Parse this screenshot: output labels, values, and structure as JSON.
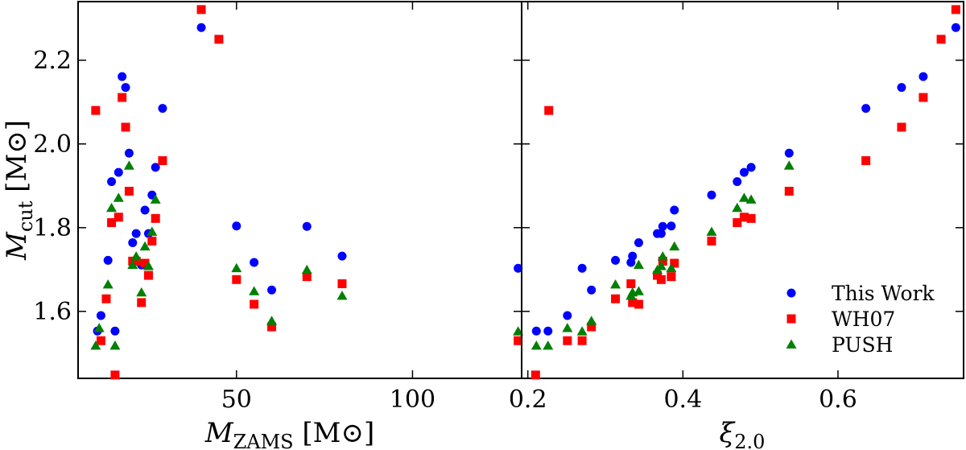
{
  "chart_data": [
    {
      "type": "scatter",
      "xlabel": "MZAMS [M⊙]",
      "ylabel": "Mcut [M⊙]",
      "xlim": [
        5,
        131
      ],
      "ylim": [
        1.44,
        2.34
      ],
      "xticks": [
        50,
        100
      ],
      "yticks": [
        1.6,
        1.8,
        2.0,
        2.2
      ],
      "xtick_labels": [
        "50",
        "100"
      ],
      "ytick_labels": [
        "1.6",
        "1.8",
        "2.0",
        "2.2"
      ],
      "series": [
        {
          "name": "This Work",
          "color": "#0000ff",
          "marker": "circle",
          "points": [
            [
              10.5,
              1.553
            ],
            [
              11.5,
              1.59
            ],
            [
              13.5,
              1.722
            ],
            [
              14.5,
              1.91
            ],
            [
              15.5,
              1.553
            ],
            [
              16.5,
              1.932
            ],
            [
              17.5,
              2.161
            ],
            [
              18.5,
              2.135
            ],
            [
              19.5,
              1.978
            ],
            [
              20.5,
              1.764
            ],
            [
              21.5,
              1.786
            ],
            [
              23.0,
              1.711
            ],
            [
              24.0,
              1.842
            ],
            [
              25.0,
              1.786
            ],
            [
              26.0,
              1.878
            ],
            [
              27.0,
              1.944
            ],
            [
              29.0,
              2.085
            ],
            [
              40.0,
              2.278
            ],
            [
              50.0,
              1.804
            ],
            [
              55.0,
              1.717
            ],
            [
              60.0,
              1.651
            ],
            [
              70.0,
              1.803
            ],
            [
              80.0,
              1.732
            ],
            [
              130.0,
              1.703
            ]
          ]
        },
        {
          "name": "WH07",
          "color": "#ff0000",
          "marker": "square",
          "points": [
            [
              10.0,
              2.08
            ],
            [
              11.5,
              1.53
            ],
            [
              13.0,
              1.63
            ],
            [
              14.5,
              1.812
            ],
            [
              15.5,
              1.448
            ],
            [
              16.5,
              1.825
            ],
            [
              17.5,
              2.111
            ],
            [
              18.5,
              2.04
            ],
            [
              19.5,
              1.887
            ],
            [
              20.5,
              1.72
            ],
            [
              21.5,
              1.72
            ],
            [
              23.0,
              1.621
            ],
            [
              24.0,
              1.715
            ],
            [
              25.0,
              1.686
            ],
            [
              26.0,
              1.768
            ],
            [
              27.0,
              1.822
            ],
            [
              29.0,
              1.96
            ],
            [
              40.0,
              2.321
            ],
            [
              45.0,
              2.25
            ],
            [
              50.0,
              1.676
            ],
            [
              55.0,
              1.617
            ],
            [
              60.0,
              1.563
            ],
            [
              70.0,
              1.683
            ],
            [
              80.0,
              1.666
            ],
            [
              130.0,
              1.53
            ]
          ]
        },
        {
          "name": "PUSH",
          "color": "#008000",
          "marker": "triangle",
          "points": [
            [
              10.0,
              1.518
            ],
            [
              11.0,
              1.56
            ],
            [
              13.5,
              1.664
            ],
            [
              14.5,
              1.847
            ],
            [
              15.5,
              1.518
            ],
            [
              16.5,
              1.871
            ],
            [
              19.5,
              1.948
            ],
            [
              20.5,
              1.711
            ],
            [
              21.5,
              1.731
            ],
            [
              23.0,
              1.645
            ],
            [
              24.0,
              1.755
            ],
            [
              25.0,
              1.708
            ],
            [
              26.0,
              1.79
            ],
            [
              27.0,
              1.867
            ],
            [
              50.0,
              1.703
            ],
            [
              55.0,
              1.648
            ],
            [
              60.0,
              1.577
            ],
            [
              70.0,
              1.699
            ],
            [
              80.0,
              1.637
            ],
            [
              130.0,
              1.552
            ]
          ]
        }
      ]
    },
    {
      "type": "scatter",
      "xlabel": "ξ2.0",
      "ylabel": "",
      "xlim": [
        0.192,
        0.762
      ],
      "ylim": [
        1.44,
        2.34
      ],
      "xticks": [
        0.2,
        0.4,
        0.6
      ],
      "yticks": [
        1.6,
        1.8,
        2.0,
        2.2
      ],
      "xtick_labels": [
        "0.2",
        "0.4",
        "0.6"
      ],
      "ytick_labels": [],
      "legend_position": "bottom-right",
      "series": [
        {
          "name": "This Work",
          "color": "#0000ff",
          "marker": "circle",
          "points": [
            [
              0.211,
              1.553
            ],
            [
              0.226,
              1.553
            ],
            [
              0.251,
              1.59
            ],
            [
              0.27,
              1.703
            ],
            [
              0.282,
              1.651
            ],
            [
              0.313,
              1.722
            ],
            [
              0.333,
              1.717
            ],
            [
              0.335,
              1.732
            ],
            [
              0.343,
              1.764
            ],
            [
              0.367,
              1.786
            ],
            [
              0.372,
              1.786
            ],
            [
              0.374,
              1.803
            ],
            [
              0.385,
              1.804
            ],
            [
              0.389,
              1.842
            ],
            [
              0.437,
              1.878
            ],
            [
              0.47,
              1.91
            ],
            [
              0.479,
              1.932
            ],
            [
              0.488,
              1.944
            ],
            [
              0.537,
              1.978
            ],
            [
              0.636,
              2.085
            ],
            [
              0.682,
              2.135
            ],
            [
              0.71,
              2.161
            ],
            [
              0.752,
              2.278
            ]
          ]
        },
        {
          "name": "WH07",
          "color": "#ff0000",
          "marker": "square",
          "points": [
            [
              0.21,
              1.448
            ],
            [
              0.227,
              2.08
            ],
            [
              0.251,
              1.53
            ],
            [
              0.27,
              1.53
            ],
            [
              0.282,
              1.563
            ],
            [
              0.313,
              1.63
            ],
            [
              0.333,
              1.666
            ],
            [
              0.335,
              1.621
            ],
            [
              0.343,
              1.617
            ],
            [
              0.367,
              1.686
            ],
            [
              0.372,
              1.676
            ],
            [
              0.374,
              1.72
            ],
            [
              0.385,
              1.683
            ],
            [
              0.389,
              1.715
            ],
            [
              0.437,
              1.768
            ],
            [
              0.47,
              1.812
            ],
            [
              0.479,
              1.825
            ],
            [
              0.488,
              1.822
            ],
            [
              0.537,
              1.887
            ],
            [
              0.636,
              1.96
            ],
            [
              0.682,
              2.04
            ],
            [
              0.71,
              2.111
            ],
            [
              0.733,
              2.25
            ],
            [
              0.752,
              2.321
            ]
          ]
        },
        {
          "name": "PUSH",
          "color": "#008000",
          "marker": "triangle",
          "points": [
            [
              0.211,
              1.518
            ],
            [
              0.226,
              1.518
            ],
            [
              0.251,
              1.56
            ],
            [
              0.27,
              1.552
            ],
            [
              0.282,
              1.577
            ],
            [
              0.313,
              1.664
            ],
            [
              0.333,
              1.637
            ],
            [
              0.335,
              1.645
            ],
            [
              0.343,
              1.648
            ],
            [
              0.343,
              1.711
            ],
            [
              0.367,
              1.699
            ],
            [
              0.372,
              1.708
            ],
            [
              0.374,
              1.731
            ],
            [
              0.385,
              1.703
            ],
            [
              0.389,
              1.755
            ],
            [
              0.437,
              1.79
            ],
            [
              0.47,
              1.847
            ],
            [
              0.479,
              1.871
            ],
            [
              0.488,
              1.867
            ],
            [
              0.537,
              1.948
            ]
          ]
        }
      ]
    }
  ]
}
